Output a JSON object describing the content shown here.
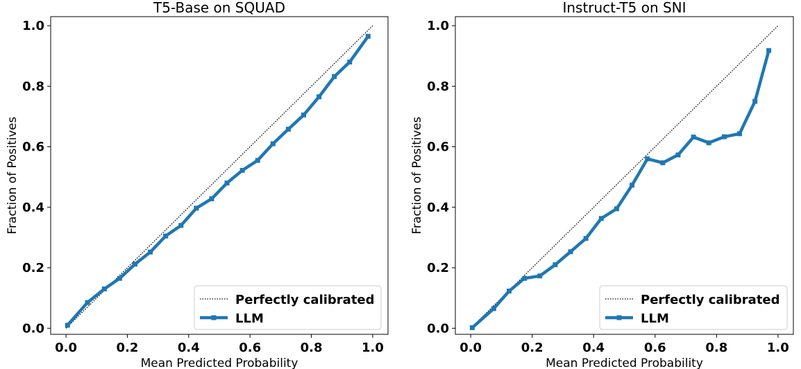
{
  "chart_data": [
    {
      "type": "line",
      "title": "T5-Base on SQUAD",
      "xlabel": "Mean Predicted Probability",
      "ylabel": "Fraction of Positives",
      "xlim": [
        -0.05,
        1.05
      ],
      "ylim": [
        -0.02,
        1.03
      ],
      "xticks": [
        0.0,
        0.2,
        0.4,
        0.6,
        0.8,
        1.0
      ],
      "yticks": [
        0.0,
        0.2,
        0.4,
        0.6,
        0.8,
        1.0
      ],
      "xtick_labels": [
        "0.0",
        "0.2",
        "0.4",
        "0.6",
        "0.8",
        "1.0"
      ],
      "ytick_labels": [
        "0.0",
        "0.2",
        "0.4",
        "0.6",
        "0.8",
        "1.0"
      ],
      "legend_position": "bottom-right",
      "legend": [
        "Perfectly calibrated",
        "LLM"
      ],
      "series": [
        {
          "name": "Perfectly calibrated",
          "style": "dotted",
          "color": "#000000",
          "x": [
            0.0,
            1.0
          ],
          "y": [
            0.0,
            1.0
          ]
        },
        {
          "name": "LLM",
          "style": "solid-square-markers",
          "color": "#1f77b4",
          "x": [
            0.005,
            0.07,
            0.125,
            0.175,
            0.225,
            0.275,
            0.325,
            0.375,
            0.425,
            0.475,
            0.525,
            0.575,
            0.625,
            0.675,
            0.725,
            0.775,
            0.825,
            0.875,
            0.925,
            0.985
          ],
          "y": [
            0.01,
            0.085,
            0.13,
            0.165,
            0.212,
            0.252,
            0.305,
            0.34,
            0.397,
            0.428,
            0.48,
            0.522,
            0.555,
            0.61,
            0.658,
            0.705,
            0.765,
            0.832,
            0.88,
            0.965
          ]
        }
      ]
    },
    {
      "type": "line",
      "title": "Instruct-T5 on SNI",
      "xlabel": "Mean Predicted Probability",
      "ylabel": "Fraction of Positives",
      "xlim": [
        -0.05,
        1.05
      ],
      "ylim": [
        -0.02,
        1.03
      ],
      "xticks": [
        0.0,
        0.2,
        0.4,
        0.6,
        0.8,
        1.0
      ],
      "yticks": [
        0.0,
        0.2,
        0.4,
        0.6,
        0.8,
        1.0
      ],
      "xtick_labels": [
        "0.0",
        "0.2",
        "0.4",
        "0.6",
        "0.8",
        "1.0"
      ],
      "ytick_labels": [
        "0.0",
        "0.2",
        "0.4",
        "0.6",
        "0.8",
        "1.0"
      ],
      "legend_position": "bottom-right",
      "legend": [
        "Perfectly calibrated",
        "LLM"
      ],
      "series": [
        {
          "name": "Perfectly calibrated",
          "style": "dotted",
          "color": "#000000",
          "x": [
            0.0,
            1.0
          ],
          "y": [
            0.0,
            1.0
          ]
        },
        {
          "name": "LLM",
          "style": "solid-square-markers",
          "color": "#1f77b4",
          "x": [
            0.005,
            0.075,
            0.125,
            0.175,
            0.225,
            0.275,
            0.325,
            0.375,
            0.425,
            0.475,
            0.525,
            0.575,
            0.625,
            0.675,
            0.725,
            0.775,
            0.825,
            0.875,
            0.925,
            0.97
          ],
          "y": [
            0.002,
            0.065,
            0.123,
            0.165,
            0.173,
            0.21,
            0.253,
            0.297,
            0.363,
            0.395,
            0.473,
            0.56,
            0.547,
            0.573,
            0.632,
            0.613,
            0.633,
            0.643,
            0.75,
            0.918
          ]
        }
      ]
    }
  ]
}
